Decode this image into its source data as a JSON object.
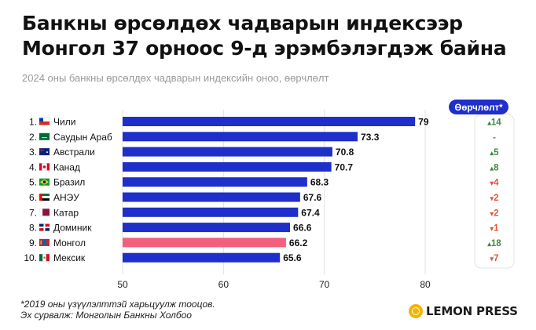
{
  "title_line1": "Банкны өрсөлдөх чадварын индексээр",
  "title_line2": "Монгол 37 орноос 9-д эрэмбэлэгдэж байна",
  "subtitle": "2024 оны банкны өрсөлдөх чадварын индексийн оноо, өөрчлөлт",
  "change_header": "Өөрчлөлт*",
  "footnote_line1": "*2019 оны үзүүлэлттэй харьцуулж тооцов.",
  "footnote_line2": "Эх сурвалж: Монголын Банкны Холбоо",
  "logo_text": "LEMON PRESS",
  "colors": {
    "bar": "#1f2fc9",
    "highlight": "#f2607d",
    "up": "#3d8b3d",
    "down": "#e0573a",
    "neutral": "#777777"
  },
  "chart_data": {
    "type": "bar",
    "orientation": "horizontal",
    "xlim": [
      50,
      80
    ],
    "xticks": [
      50,
      60,
      70,
      80
    ],
    "grid": true,
    "highlight_country": "Монгол",
    "rows": [
      {
        "rank": "1.",
        "country": "Чили",
        "flag": "chile-flag",
        "value": 79,
        "label": "79",
        "change": "14",
        "dir": "up"
      },
      {
        "rank": "2.",
        "country": "Саудын Араб",
        "flag": "saudi-arabia-flag",
        "value": 73.3,
        "label": "73.3",
        "change": "-",
        "dir": "none"
      },
      {
        "rank": "3.",
        "country": "Австрали",
        "flag": "australia-flag",
        "value": 70.8,
        "label": "70.8",
        "change": "5",
        "dir": "up"
      },
      {
        "rank": "4.",
        "country": "Канад",
        "flag": "canada-flag",
        "value": 70.7,
        "label": "70.7",
        "change": "8",
        "dir": "up"
      },
      {
        "rank": "5.",
        "country": "Бразил",
        "flag": "brazil-flag",
        "value": 68.3,
        "label": "68.3",
        "change": "4",
        "dir": "down"
      },
      {
        "rank": "6.",
        "country": "АНЭУ",
        "flag": "uae-flag",
        "value": 67.6,
        "label": "67.6",
        "change": "2",
        "dir": "down"
      },
      {
        "rank": "7.",
        "country": "Катар",
        "flag": "qatar-flag",
        "value": 67.4,
        "label": "67.4",
        "change": "2",
        "dir": "down"
      },
      {
        "rank": "8.",
        "country": "Доминик",
        "flag": "dominican-republic-flag",
        "value": 66.6,
        "label": "66.6",
        "change": "1",
        "dir": "down"
      },
      {
        "rank": "9.",
        "country": "Монгол",
        "flag": "mongolia-flag",
        "value": 66.2,
        "label": "66.2",
        "change": "18",
        "dir": "up"
      },
      {
        "rank": "10.",
        "country": "Мексик",
        "flag": "mexico-flag",
        "value": 65.6,
        "label": "65.6",
        "change": "7",
        "dir": "down"
      }
    ]
  }
}
